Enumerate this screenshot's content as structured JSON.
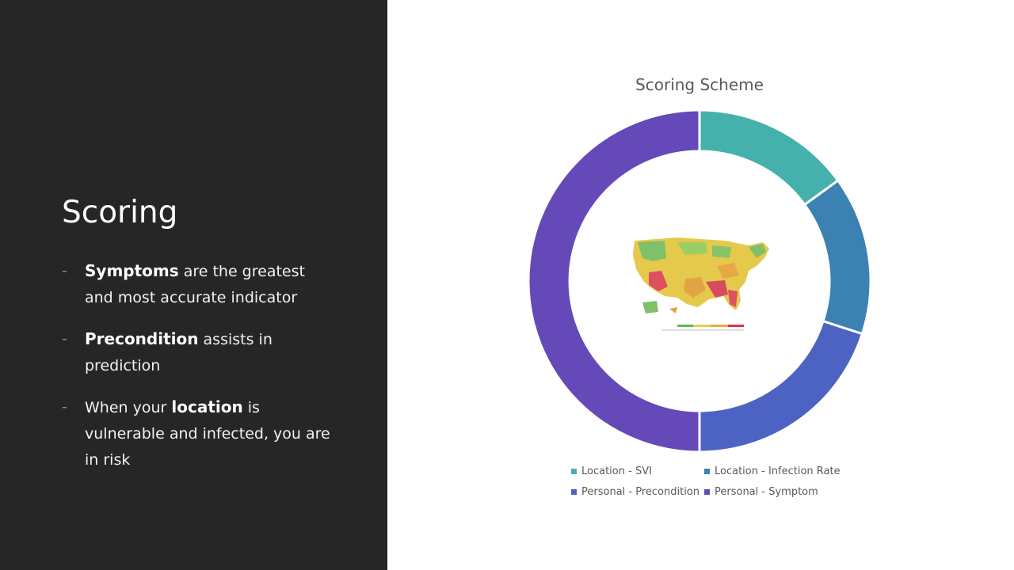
{
  "slide": {
    "title": "Scoring",
    "bullets": [
      {
        "pre": "",
        "bold": "Symptoms",
        "post": " are the greatest and most accurate indicator"
      },
      {
        "pre": "",
        "bold": "Precondition",
        "post": " assists in prediction"
      },
      {
        "pre": "When your ",
        "bold": "location",
        "post": " is vulnerable and infected, you are in risk"
      }
    ],
    "bullet_marker": "-"
  },
  "chart_data": {
    "type": "pie",
    "variant": "donut",
    "title": "Scoring Scheme",
    "series": [
      {
        "name": "Location - SVI",
        "value": 15,
        "color": "#45b1ad"
      },
      {
        "name": "Location - Infection Rate",
        "value": 15,
        "color": "#3b82b2"
      },
      {
        "name": "Personal - Precondition",
        "value": 20,
        "color": "#4c63c3"
      },
      {
        "name": "Personal - Symptom",
        "value": 50,
        "color": "#6549b8"
      }
    ],
    "legend_position": "bottom",
    "center_image": "us-map-heatmap"
  },
  "colors": {
    "left_panel_bg": "#262626",
    "bullet_dash": "#43b0ac"
  }
}
